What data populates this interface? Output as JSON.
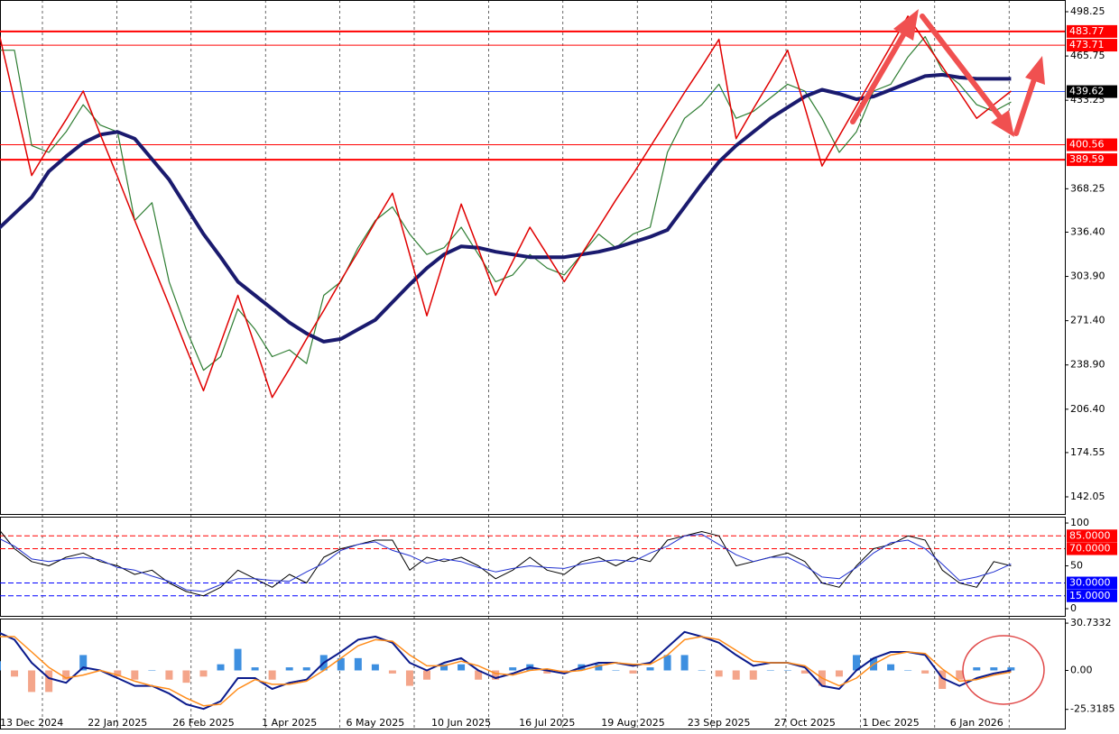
{
  "chart_data": [
    {
      "type": "line",
      "categories": [
        null,
        null,
        "13 Dec 2024",
        null,
        null,
        null,
        null,
        "22 Jan 2025",
        null,
        null,
        null,
        null,
        "26 Feb 2025",
        null,
        null,
        null,
        null,
        "1 Apr 2025",
        null,
        null,
        null,
        null,
        "6 May 2025",
        null,
        null,
        null,
        null,
        "10 Jun 2025",
        null,
        null,
        null,
        null,
        "16 Jul 2025",
        null,
        null,
        null,
        null,
        "19 Aug 2025",
        null,
        null,
        null,
        null,
        "23 Sep 2025",
        null,
        null,
        null,
        null,
        "27 Oct 2025",
        null,
        null,
        null,
        null,
        "1 Dec 2025",
        null,
        null,
        null,
        null,
        "6 Jan 2026",
        null,
        null
      ],
      "series": [
        {
          "color": "#2e7d32",
          "width": 1.2,
          "values": [
            470,
            470,
            400,
            395,
            410,
            430,
            415,
            410,
            345,
            358,
            300,
            265,
            235,
            245,
            280,
            265,
            245,
            250,
            240,
            290,
            300,
            325,
            345,
            355,
            335,
            320,
            325,
            340,
            320,
            300,
            305,
            320,
            310,
            305,
            320,
            335,
            325,
            335,
            340,
            395,
            420,
            430,
            445,
            420,
            425,
            435,
            445,
            440,
            420,
            395,
            410,
            440,
            445,
            465,
            480,
            455,
            445,
            430,
            425,
            432
          ]
        },
        {
          "color": "#1a1a6e",
          "width": 4,
          "values": [
            338,
            350,
            362,
            381,
            392,
            402,
            408,
            410,
            405,
            390,
            375,
            355,
            335,
            318,
            300,
            290,
            280,
            270,
            262,
            256,
            258,
            265,
            272,
            285,
            298,
            310,
            320,
            326,
            325,
            322,
            320,
            318,
            318,
            318,
            320,
            322,
            325,
            329,
            333,
            338,
            355,
            372,
            388,
            400,
            410,
            420,
            428,
            436,
            441,
            438,
            434,
            436,
            441,
            446,
            451,
            452,
            450,
            449,
            449,
            449
          ]
        },
        {
          "color": "#e00000",
          "width": 1.5,
          "values": [
            488,
            433,
            378,
            399,
            419,
            440,
            408,
            377,
            345,
            314,
            283,
            251,
            220,
            255,
            290,
            253,
            215,
            236,
            258,
            279,
            301,
            322,
            344,
            365,
            320,
            275,
            316,
            357,
            324,
            290,
            315,
            340,
            320,
            300,
            320,
            340,
            360,
            379,
            399,
            419,
            439,
            458,
            478,
            405,
            427,
            448,
            470,
            428,
            385,
            407,
            429,
            451,
            473,
            495,
            476,
            458,
            439,
            420,
            430,
            440
          ]
        }
      ],
      "ylim": [
        129.47,
        506.86
      ],
      "yticks": [
        498.25,
        465.75,
        433.25,
        368.25,
        {
          "value": 336.4,
          "label": "336.40"
        },
        {
          "value": 303.9,
          "label": "303.90"
        },
        {
          "value": 271.4,
          "label": "271.40"
        },
        {
          "value": 238.9,
          "label": "238.90"
        },
        {
          "value": 206.4,
          "label": "206.40"
        },
        174.55,
        142.05
      ],
      "levels": [
        {
          "value": 483.77,
          "color": "#ff0000",
          "label_color": "#ff0000"
        },
        {
          "value": 473.71,
          "color": "#ff0000",
          "label_color": "#ff0000"
        },
        {
          "value": 439.62,
          "color": "#3355ff",
          "label_color": "#000000"
        },
        {
          "value": 400.56,
          "color": "#ff0000",
          "label_color": "#ff0000"
        },
        {
          "value": 389.59,
          "color": "#ff0000",
          "label_color": "#ff0000"
        }
      ]
    },
    {
      "type": "line",
      "series": [
        {
          "color": "#000000",
          "width": 1,
          "values": [
            95,
            70,
            55,
            50,
            60,
            65,
            55,
            50,
            40,
            45,
            30,
            20,
            15,
            25,
            45,
            35,
            25,
            40,
            30,
            60,
            70,
            75,
            80,
            80,
            45,
            60,
            55,
            60,
            50,
            35,
            45,
            60,
            45,
            40,
            55,
            60,
            50,
            60,
            55,
            80,
            85,
            90,
            85,
            50,
            55,
            60,
            65,
            55,
            30,
            25,
            50,
            70,
            75,
            85,
            80,
            45,
            30,
            25,
            55,
            50
          ]
        },
        {
          "color": "#2030d0",
          "width": 1,
          "values": [
            83,
            73,
            58,
            55,
            58,
            60,
            57,
            48,
            45,
            38,
            32,
            22,
            20,
            28,
            35,
            35,
            33,
            32,
            43,
            53,
            68,
            75,
            78,
            68,
            62,
            53,
            58,
            55,
            48,
            43,
            47,
            50,
            48,
            47,
            52,
            55,
            57,
            55,
            65,
            73,
            85,
            87,
            75,
            63,
            55,
            60,
            60,
            50,
            37,
            35,
            48,
            65,
            77,
            80,
            70,
            52,
            33,
            37,
            43,
            52
          ]
        }
      ],
      "ylim": [
        -8.4,
        107.4
      ],
      "yticks": [
        0,
        50,
        100
      ],
      "levels": [
        {
          "value": 85,
          "label": "85.0000",
          "color": "#ff0000",
          "label_color": "#ff0000"
        },
        {
          "value": 70,
          "label": "70.0000",
          "color": "#ff0000",
          "label_color": "#ff0000"
        },
        {
          "value": 30,
          "label": "30.0000",
          "color": "#0000ff",
          "label_color": "#0000ff"
        },
        {
          "value": 15,
          "label": "15.0000",
          "color": "#0000ff",
          "label_color": "#0000ff"
        }
      ]
    },
    {
      "type": "macd",
      "values": [
        6,
        -4,
        -14,
        -14,
        -6,
        10,
        0,
        -4,
        -6,
        0,
        -6,
        -8,
        -4,
        4,
        14,
        2,
        -6,
        2,
        2,
        10,
        8,
        8,
        4,
        -2,
        -10,
        -6,
        4,
        4,
        -6,
        -6,
        2,
        4,
        -2,
        -2,
        4,
        4,
        0,
        -2,
        2,
        10,
        10,
        0,
        -4,
        -6,
        -6,
        0,
        0,
        -2,
        -10,
        -4,
        10,
        8,
        4,
        0,
        -2,
        -12,
        -6,
        2,
        2,
        2
      ],
      "pos_color": "#3d8fe0",
      "neg_color": "#f4a58a",
      "series": [
        {
          "color": "#0a1a8c",
          "width": 2,
          "values": [
            25,
            20,
            5,
            -5,
            -8,
            2,
            0,
            -5,
            -10,
            -10,
            -15,
            -22,
            -25,
            -20,
            -5,
            -5,
            -12,
            -8,
            -6,
            5,
            12,
            20,
            22,
            18,
            5,
            0,
            5,
            8,
            0,
            -5,
            -2,
            2,
            0,
            -2,
            2,
            5,
            5,
            3,
            5,
            15,
            25,
            22,
            18,
            10,
            3,
            5,
            5,
            2,
            -10,
            -12,
            0,
            8,
            12,
            12,
            10,
            -5,
            -10,
            -5,
            -2,
            0
          ]
        },
        {
          "color": "#ff8c1a",
          "width": 1.5,
          "values": [
            22,
            22,
            12,
            2,
            -5,
            -3,
            0,
            -3,
            -7,
            -10,
            -12,
            -18,
            -23,
            -22,
            -12,
            -6,
            -9,
            -9,
            -7,
            0,
            8,
            16,
            20,
            19,
            10,
            3,
            3,
            6,
            3,
            -2,
            -3,
            0,
            1,
            -1,
            0,
            3,
            5,
            4,
            4,
            10,
            20,
            22,
            20,
            13,
            6,
            5,
            5,
            3,
            -5,
            -10,
            -5,
            4,
            10,
            12,
            11,
            1,
            -7,
            -6,
            -3,
            -1
          ]
        }
      ],
      "ylim": [
        -37.8,
        33.7
      ],
      "yticks": [
        30.7332,
        {
          "value": 0,
          "label": "0.00"
        },
        -25.3185
      ]
    }
  ]
}
